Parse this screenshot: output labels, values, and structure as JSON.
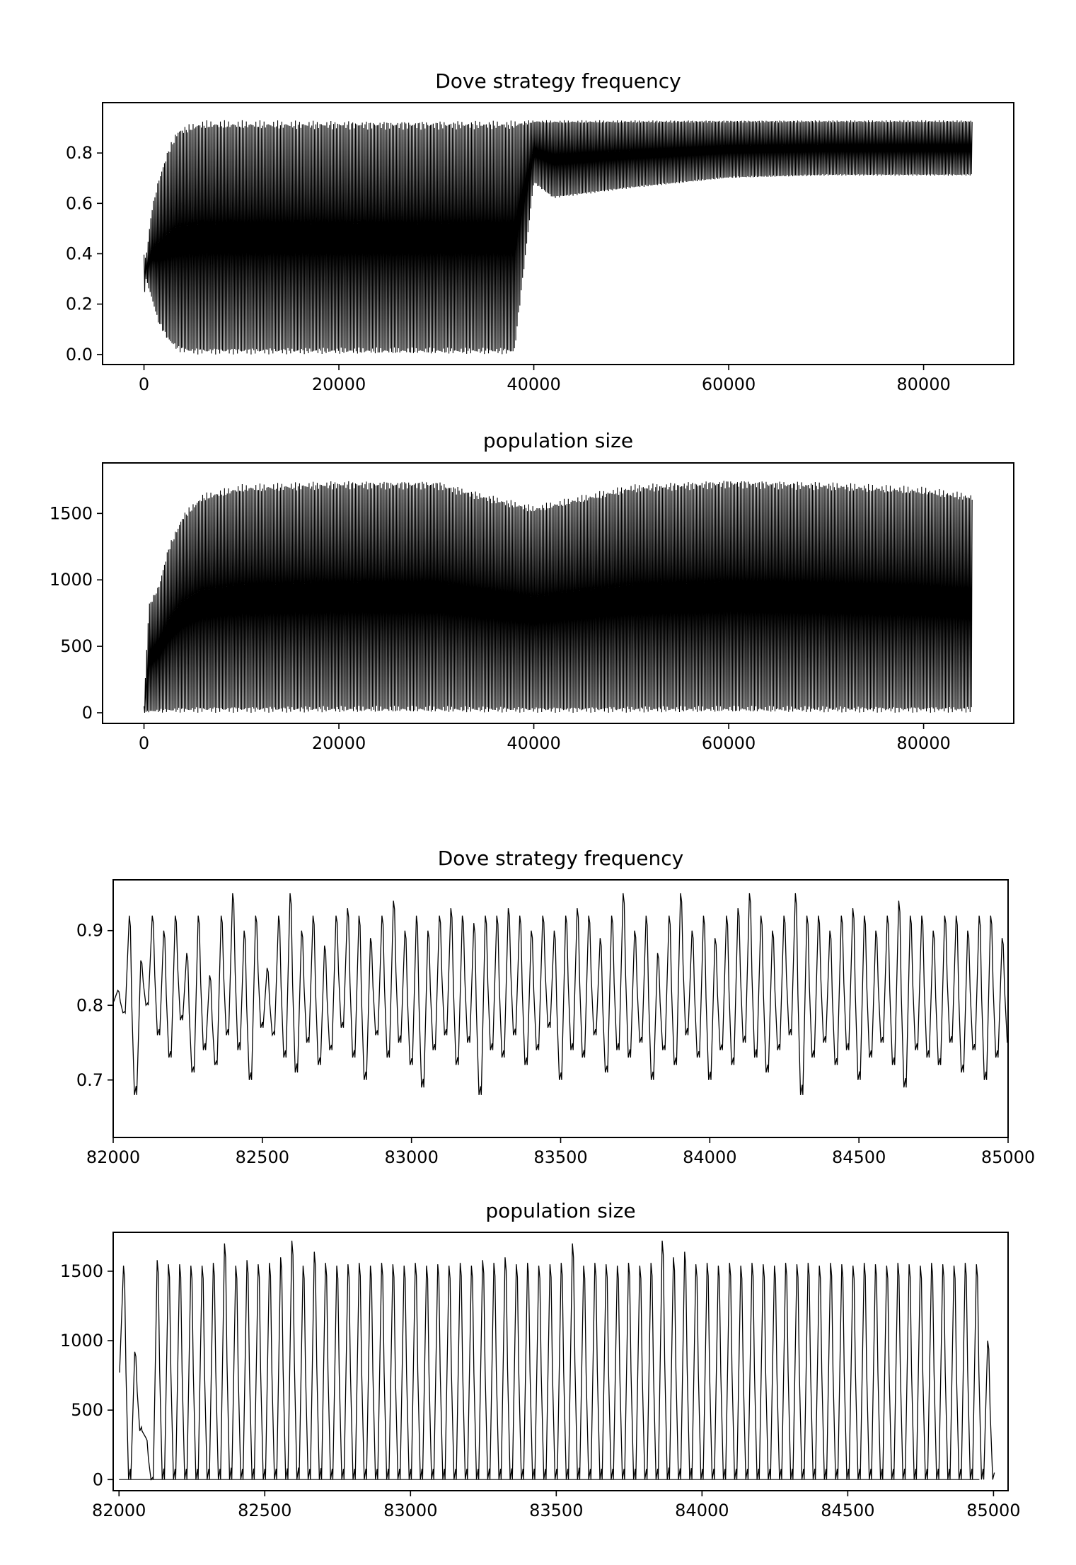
{
  "chart_data": [
    {
      "type": "line",
      "title": "Dove strategy frequency",
      "xlabel": "",
      "ylabel": "",
      "xlim": [
        -4250,
        89250
      ],
      "ylim": [
        -0.04,
        1.0
      ],
      "xticks": [
        0,
        20000,
        40000,
        60000,
        80000
      ],
      "xtick_labels": [
        "0",
        "20000",
        "40000",
        "60000",
        "80000"
      ],
      "yticks": [
        0.0,
        0.2,
        0.4,
        0.6,
        0.8
      ],
      "ytick_labels": [
        "0.0",
        "0.2",
        "0.4",
        "0.6",
        "0.8"
      ],
      "grid": false,
      "series": [
        {
          "x": [
            0,
            200,
            800,
            1500,
            2500,
            3500,
            5000,
            6000,
            10000,
            20000,
            30000,
            33000,
            36000,
            38000,
            40000,
            42000,
            50000,
            60000,
            70000,
            80000,
            85000
          ],
          "y_max": [
            0.4,
            0.38,
            0.58,
            0.7,
            0.82,
            0.9,
            0.92,
            0.93,
            0.93,
            0.93,
            0.93,
            0.93,
            0.93,
            0.93,
            0.93,
            0.93,
            0.93,
            0.93,
            0.93,
            0.93,
            0.93
          ],
          "y_min": [
            0.22,
            0.3,
            0.22,
            0.12,
            0.05,
            0.01,
            0.0,
            0.0,
            0.0,
            0.0,
            0.0,
            0.0,
            0.0,
            0.0,
            0.68,
            0.62,
            0.66,
            0.7,
            0.71,
            0.71,
            0.71
          ]
        }
      ]
    },
    {
      "type": "line",
      "title": "population size",
      "xlabel": "",
      "ylabel": "",
      "xlim": [
        -4250,
        89250
      ],
      "ylim": [
        -80,
        1880
      ],
      "xticks": [
        0,
        20000,
        40000,
        60000,
        80000
      ],
      "xtick_labels": [
        "0",
        "20000",
        "40000",
        "60000",
        "80000"
      ],
      "yticks": [
        0,
        500,
        1000,
        1500
      ],
      "ytick_labels": [
        "0",
        "500",
        "1000",
        "1500"
      ],
      "grid": false,
      "series": [
        {
          "x": [
            0,
            500,
            1500,
            2500,
            4000,
            6000,
            10000,
            20000,
            30000,
            35000,
            40000,
            50000,
            60000,
            70000,
            80000,
            85000
          ],
          "y_max": [
            50,
            820,
            960,
            1250,
            1500,
            1650,
            1720,
            1750,
            1750,
            1650,
            1560,
            1720,
            1760,
            1740,
            1700,
            1650
          ],
          "y_min": [
            0,
            0,
            0,
            0,
            0,
            0,
            0,
            0,
            0,
            0,
            0,
            0,
            0,
            0,
            0,
            0
          ]
        }
      ]
    },
    {
      "type": "line",
      "title": "Dove strategy frequency",
      "xlabel": "",
      "ylabel": "",
      "xlim": [
        82000,
        85000
      ],
      "ylim": [
        0.623,
        0.968
      ],
      "xticks": [
        82000,
        82500,
        83000,
        83500,
        84000,
        84500,
        85000
      ],
      "xtick_labels": [
        "82000",
        "82500",
        "83000",
        "83500",
        "84000",
        "84500",
        "85000"
      ],
      "yticks": [
        0.7,
        0.8,
        0.9
      ],
      "ytick_labels": [
        "0.7",
        "0.8",
        "0.9"
      ],
      "grid": false,
      "series": [
        {
          "cycle_period": 38.5,
          "peaks": [
            0.82,
            0.92,
            0.86,
            0.92,
            0.9,
            0.92,
            0.87,
            0.92,
            0.84,
            0.92,
            0.95,
            0.9,
            0.92,
            0.85,
            0.92,
            0.95,
            0.9,
            0.92,
            0.88,
            0.92,
            0.93,
            0.92,
            0.89,
            0.92,
            0.94,
            0.9,
            0.92,
            0.9,
            0.92,
            0.93,
            0.92,
            0.91,
            0.92,
            0.92,
            0.93,
            0.92,
            0.9,
            0.92,
            0.9,
            0.92,
            0.93,
            0.92,
            0.89,
            0.92,
            0.95,
            0.9,
            0.92,
            0.87,
            0.92,
            0.95,
            0.9,
            0.92,
            0.89,
            0.92,
            0.93,
            0.95,
            0.92,
            0.9,
            0.92,
            0.95,
            0.92,
            0.92,
            0.9,
            0.92,
            0.93,
            0.92,
            0.9,
            0.92,
            0.94,
            0.92,
            0.92,
            0.9,
            0.92,
            0.92,
            0.9,
            0.92,
            0.92,
            0.89
          ],
          "troughs": [
            0.79,
            0.68,
            0.8,
            0.76,
            0.73,
            0.78,
            0.71,
            0.74,
            0.72,
            0.76,
            0.74,
            0.7,
            0.77,
            0.76,
            0.73,
            0.71,
            0.75,
            0.72,
            0.74,
            0.77,
            0.73,
            0.7,
            0.76,
            0.73,
            0.75,
            0.72,
            0.69,
            0.74,
            0.76,
            0.72,
            0.75,
            0.68,
            0.74,
            0.73,
            0.76,
            0.72,
            0.74,
            0.77,
            0.7,
            0.74,
            0.73,
            0.76,
            0.71,
            0.74,
            0.73,
            0.75,
            0.7,
            0.74,
            0.72,
            0.76,
            0.73,
            0.7,
            0.74,
            0.72,
            0.75,
            0.73,
            0.71,
            0.74,
            0.76,
            0.68,
            0.73,
            0.75,
            0.72,
            0.74,
            0.7,
            0.73,
            0.75,
            0.72,
            0.69,
            0.74,
            0.73,
            0.72,
            0.75,
            0.71,
            0.74,
            0.7,
            0.73,
            0.75
          ]
        }
      ]
    },
    {
      "type": "line",
      "title": "population size",
      "xlabel": "",
      "ylabel": "",
      "xlim": [
        81980,
        85050
      ],
      "ylim": [
        -80,
        1780
      ],
      "xticks": [
        82000,
        82500,
        83000,
        83500,
        84000,
        84500,
        85000
      ],
      "xtick_labels": [
        "82000",
        "82500",
        "83000",
        "83500",
        "84000",
        "84500",
        "85000"
      ],
      "yticks": [
        0,
        500,
        1000,
        1500
      ],
      "ytick_labels": [
        "0",
        "500",
        "1000",
        "1500"
      ],
      "grid": false,
      "series": [
        {
          "cycle_period": 38.5,
          "peaks": [
            1540,
            920,
            300,
            1580,
            1550,
            1550,
            1540,
            1540,
            1560,
            1700,
            1540,
            1580,
            1550,
            1560,
            1600,
            1720,
            1540,
            1640,
            1560,
            1540,
            1550,
            1560,
            1540,
            1560,
            1550,
            1540,
            1560,
            1540,
            1550,
            1540,
            1560,
            1540,
            1580,
            1560,
            1600,
            1550,
            1560,
            1540,
            1550,
            1560,
            1700,
            1540,
            1560,
            1550,
            1540,
            1560,
            1540,
            1560,
            1720,
            1600,
            1640,
            1550,
            1560,
            1540,
            1560,
            1540,
            1560,
            1550,
            1540,
            1560,
            1550,
            1560,
            1540,
            1560,
            1550,
            1540,
            1560,
            1550,
            1540,
            1560,
            1550,
            1540,
            1560,
            1550,
            1540,
            1560,
            1550,
            1000
          ],
          "troughs": [
            0,
            350,
            0,
            0,
            0,
            0,
            0,
            0,
            0,
            0,
            0,
            0,
            0,
            0,
            0,
            0,
            0,
            0,
            0,
            0,
            0,
            0,
            0,
            0,
            0,
            0,
            0,
            0,
            0,
            0,
            0,
            0,
            0,
            0,
            0,
            0,
            0,
            0,
            0,
            0,
            0,
            0,
            0,
            0,
            0,
            0,
            0,
            0,
            0,
            0,
            0,
            0,
            0,
            0,
            0,
            0,
            0,
            0,
            0,
            0,
            0,
            0,
            0,
            0,
            0,
            0,
            0,
            0,
            0,
            0,
            0,
            0,
            0,
            0,
            0,
            0,
            0,
            0
          ]
        }
      ]
    }
  ]
}
